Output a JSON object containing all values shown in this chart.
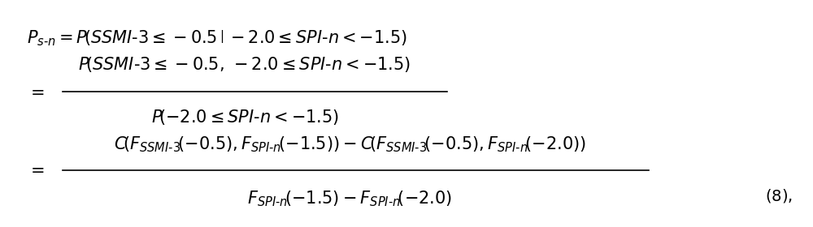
{
  "background_color": "#ffffff",
  "text_color": "#000000",
  "figsize": [
    10.0,
    2.8
  ],
  "dpi": 100,
  "line1": "$\\mathrm{P}_{s\\text{-}n} = P\\!\\left(SSMI\\text{-}3 \\leq -0.5\\,\\middle|\\,-2.0 \\leq SPI\\text{-}n < -1.5\\right)$",
  "line2_num": "$P\\!\\left(SSMI\\text{-}3 \\leq -0.5,\\,-2.0 \\leq SPI\\text{-}n < -1.5\\right)$",
  "line2_den": "$P\\!\\left(-2.0 \\leq SPI\\text{-}n < -1.5\\right)$",
  "line3_num": "$C\\!\\left(F_{SSMI\\text{-}3}\\!\\left(-0.5\\right),F_{SPI\\text{-}n}\\!\\left(-1.5\\right)\\right) - C\\!\\left(F_{SSMI\\text{-}3}\\!\\left(-0.5\\right),F_{SPI\\text{-}n}\\!\\left(-2.0\\right)\\right)$",
  "line3_den": "$F_{SPI\\text{-}n}\\!\\left(-1.5\\right) - F_{SPI\\text{-}n}\\!\\left(-2.0\\right)$",
  "eq_label": "$(8),$",
  "fontsize_main": 15,
  "fontsize_eq": 14
}
